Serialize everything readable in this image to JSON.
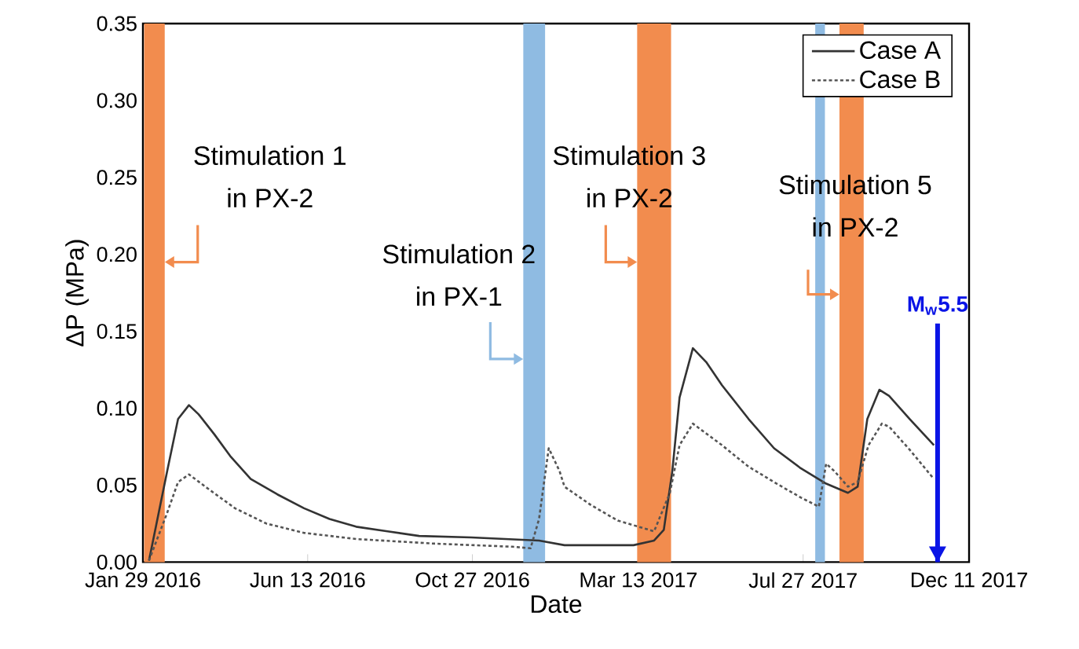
{
  "chart_data": {
    "type": "line",
    "xlabel": "Date",
    "ylabel": "ΔP (MPa)",
    "xlim": [
      "2016-01-29",
      "2017-12-11"
    ],
    "ylim": [
      0,
      0.35
    ],
    "xticks": [
      {
        "value": "2016-01-29",
        "label": "Jan 29 2016"
      },
      {
        "value": "2016-06-13",
        "label": "Jun 13 2016"
      },
      {
        "value": "2016-10-27",
        "label": "Oct 27 2016"
      },
      {
        "value": "2017-03-13",
        "label": "Mar 13 2017"
      },
      {
        "value": "2017-07-27",
        "label": "Jul 27 2017"
      },
      {
        "value": "2017-12-11",
        "label": "Dec 11 2017"
      }
    ],
    "yticks": [
      {
        "value": 0,
        "label": "0.00"
      },
      {
        "value": 0.05,
        "label": "0.05"
      },
      {
        "value": 0.1,
        "label": "0.10"
      },
      {
        "value": 0.15,
        "label": "0.15"
      },
      {
        "value": 0.2,
        "label": "0.20"
      },
      {
        "value": 0.25,
        "label": "0.25"
      },
      {
        "value": 0.3,
        "label": "0.30"
      },
      {
        "value": 0.35,
        "label": "0.35"
      }
    ],
    "legend": "top right",
    "marker": "none",
    "series": [
      {
        "name": "Case A",
        "color": "#333333",
        "line_style": "solid",
        "x": [
          "2016-02-03",
          "2016-02-18",
          "2016-02-27",
          "2016-03-07",
          "2016-03-15",
          "2016-03-28",
          "2016-04-10",
          "2016-04-27",
          "2016-05-19",
          "2016-06-10",
          "2016-07-01",
          "2016-07-23",
          "2016-08-18",
          "2016-09-13",
          "2016-10-26",
          "2016-12-21",
          "2017-01-11",
          "2017-03-09",
          "2017-03-26",
          "2017-04-03",
          "2017-04-10",
          "2017-04-16",
          "2017-04-27",
          "2017-05-08",
          "2017-05-21",
          "2017-06-12",
          "2017-07-03",
          "2017-07-25",
          "2017-08-15",
          "2017-09-02",
          "2017-09-10",
          "2017-09-18",
          "2017-09-28",
          "2017-10-06",
          "2017-10-23",
          "2017-11-12"
        ],
        "values": [
          0.001,
          0.059,
          0.093,
          0.102,
          0.096,
          0.083,
          0.069,
          0.054,
          0.044,
          0.035,
          0.028,
          0.023,
          0.02,
          0.017,
          0.016,
          0.014,
          0.011,
          0.011,
          0.014,
          0.021,
          0.059,
          0.107,
          0.139,
          0.13,
          0.115,
          0.093,
          0.074,
          0.061,
          0.051,
          0.045,
          0.049,
          0.093,
          0.112,
          0.108,
          0.093,
          0.076
        ]
      },
      {
        "name": "Case B",
        "color": "#555555",
        "line_style": "dotted",
        "x": [
          "2016-02-03",
          "2016-02-18",
          "2016-02-27",
          "2016-03-07",
          "2016-03-24",
          "2016-04-14",
          "2016-05-10",
          "2016-06-10",
          "2016-07-23",
          "2016-09-26",
          "2016-11-29",
          "2016-12-14",
          "2016-12-21",
          "2016-12-29",
          "2017-01-07",
          "2017-01-11",
          "2017-02-02",
          "2017-02-24",
          "2017-03-26",
          "2017-04-08",
          "2017-04-16",
          "2017-04-27",
          "2017-05-21",
          "2017-06-12",
          "2017-07-03",
          "2017-07-25",
          "2017-08-09",
          "2017-08-15",
          "2017-08-22",
          "2017-09-02",
          "2017-09-10",
          "2017-09-19",
          "2017-09-30",
          "2017-10-06",
          "2017-10-23",
          "2017-11-12"
        ],
        "values": [
          0.001,
          0.032,
          0.052,
          0.057,
          0.047,
          0.035,
          0.025,
          0.019,
          0.015,
          0.012,
          0.01,
          0.009,
          0.028,
          0.074,
          0.059,
          0.049,
          0.037,
          0.027,
          0.02,
          0.045,
          0.076,
          0.09,
          0.076,
          0.062,
          0.052,
          0.042,
          0.036,
          0.064,
          0.059,
          0.049,
          0.052,
          0.076,
          0.09,
          0.088,
          0.073,
          0.054
        ]
      }
    ],
    "bands": [
      {
        "axis": "x",
        "from": "2016-01-30",
        "to": "2016-02-16",
        "label": "Stimulation 1 in PX-2",
        "color": "#f28c4e"
      },
      {
        "axis": "x",
        "from": "2016-12-08",
        "to": "2016-12-26",
        "label": "Stimulation 2 in PX-1",
        "color": "#8fbbe2"
      },
      {
        "axis": "x",
        "from": "2017-03-12",
        "to": "2017-04-09",
        "label": "Stimulation 3 in PX-2",
        "color": "#f28c4e"
      },
      {
        "axis": "x",
        "from": "2017-08-06",
        "to": "2017-08-14",
        "color": "#8fbbe2"
      },
      {
        "axis": "x",
        "from": "2017-08-26",
        "to": "2017-09-15",
        "label": "Stimulation 5 in PX-2",
        "color": "#f28c4e"
      }
    ],
    "ref_lines": [
      {
        "axis": "x",
        "value": "2017-11-15",
        "label": "M$_{w}$5.5",
        "color": "#0a14e6"
      }
    ]
  }
}
